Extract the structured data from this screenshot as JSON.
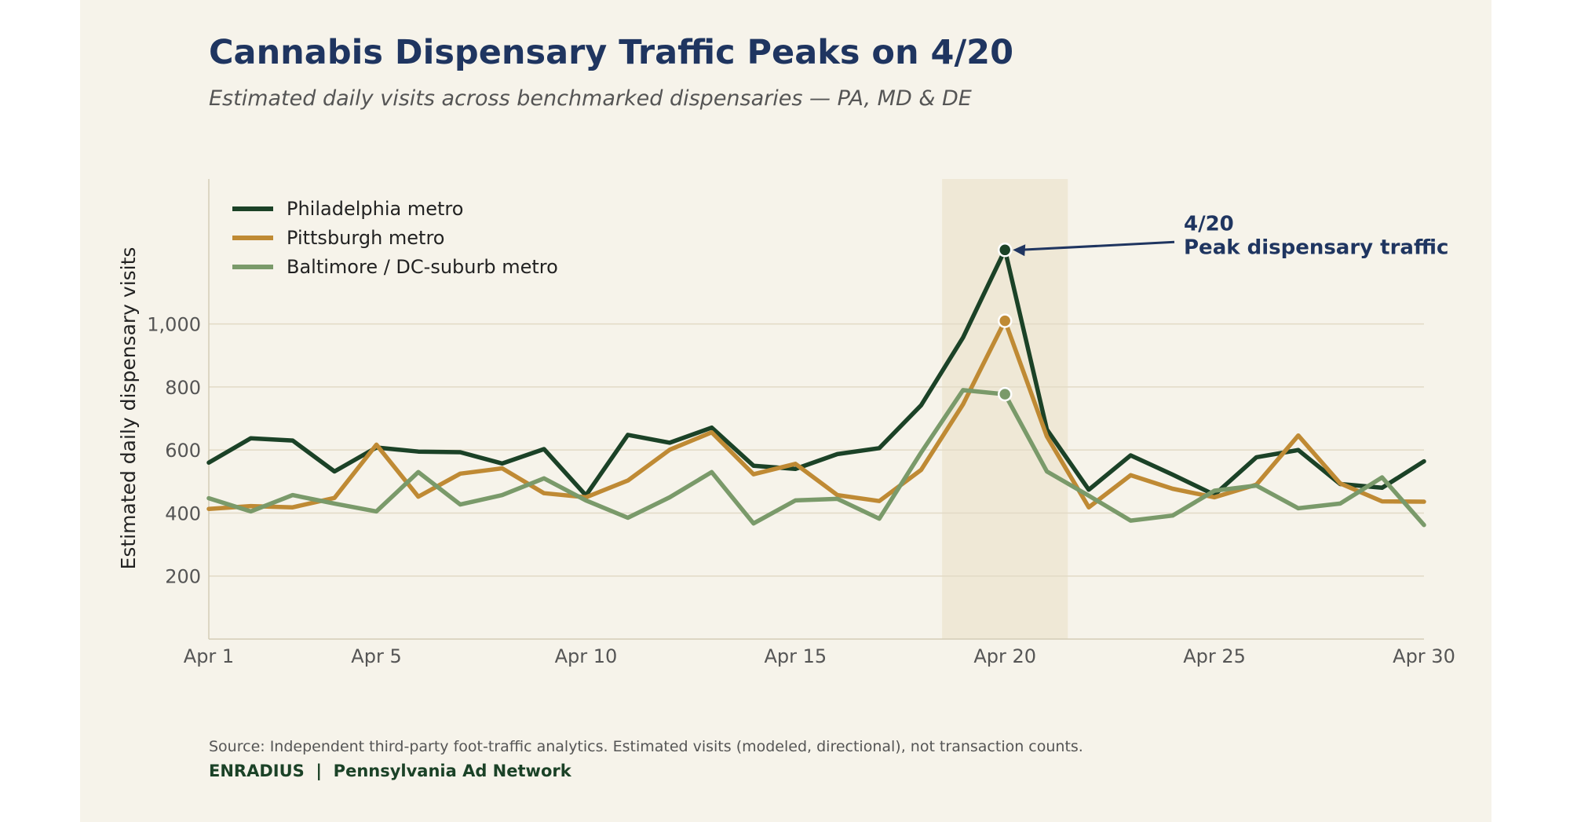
{
  "header": {
    "title": "Cannabis Dispensary Traffic Peaks on 4/20",
    "subtitle": "Estimated daily visits across benchmarked dispensaries — PA, MD & DE"
  },
  "footer": {
    "source": "Source: Independent third-party foot-traffic analytics. Estimated visits (modeled, directional), not transaction counts.",
    "brand": "ENRADIUS  |  Pennsylvania Ad Network"
  },
  "colors": {
    "panel_bg": "#f6f3ea",
    "title": "#1f3560",
    "philadelphia": "#1b4227",
    "pittsburgh": "#bf8a34",
    "baltimore": "#7a9a6a",
    "highlight_band": "#efe8d6",
    "grid": "#e2dac6",
    "annotation": "#1f3560"
  },
  "chart_data": {
    "type": "line",
    "title": "Cannabis Dispensary Traffic Peaks on 4/20",
    "subtitle": "Estimated daily visits across benchmarked dispensaries — PA, MD & DE",
    "ylabel": "Estimated daily dispensary visits",
    "xlabel": "",
    "x": [
      1,
      2,
      3,
      4,
      5,
      6,
      7,
      8,
      9,
      10,
      11,
      12,
      13,
      14,
      15,
      16,
      17,
      18,
      19,
      20,
      21,
      22,
      23,
      24,
      25,
      26,
      27,
      28,
      29,
      30
    ],
    "xlim": [
      1,
      30
    ],
    "ylim": [
      0,
      1460
    ],
    "x_ticks": [
      {
        "value": 1,
        "label": "Apr 1"
      },
      {
        "value": 5,
        "label": "Apr 5"
      },
      {
        "value": 10,
        "label": "Apr 10"
      },
      {
        "value": 15,
        "label": "Apr 15"
      },
      {
        "value": 20,
        "label": "Apr 20"
      },
      {
        "value": 25,
        "label": "Apr 25"
      },
      {
        "value": 30,
        "label": "Apr 30"
      }
    ],
    "y_ticks": [
      {
        "value": 200,
        "label": "200"
      },
      {
        "value": 400,
        "label": "400"
      },
      {
        "value": 600,
        "label": "600"
      },
      {
        "value": 800,
        "label": "800"
      },
      {
        "value": 1000,
        "label": "1,000"
      }
    ],
    "grid": true,
    "legend_position": "top-left",
    "highlight_range": [
      18.5,
      21.5
    ],
    "series": [
      {
        "name": "Philadelphia metro",
        "color": "#1b4227",
        "values": [
          560,
          637,
          630,
          532,
          608,
          595,
          593,
          557,
          603,
          456,
          648,
          623,
          671,
          550,
          540,
          587,
          606,
          742,
          957,
          1235,
          665,
          474,
          583,
          522,
          458,
          577,
          600,
          492,
          480,
          564
        ],
        "highlight_point": 20
      },
      {
        "name": "Pittsburgh metro",
        "color": "#bf8a34",
        "values": [
          413,
          422,
          418,
          448,
          617,
          452,
          525,
          542,
          463,
          450,
          503,
          601,
          656,
          523,
          556,
          457,
          438,
          537,
          745,
          1010,
          643,
          418,
          520,
          477,
          450,
          490,
          646,
          494,
          437,
          436
        ],
        "highlight_point": 20
      },
      {
        "name": "Baltimore / DC-suburb metro",
        "color": "#7a9a6a",
        "values": [
          447,
          405,
          457,
          430,
          405,
          530,
          427,
          457,
          510,
          440,
          385,
          450,
          530,
          367,
          440,
          445,
          382,
          592,
          790,
          777,
          532,
          455,
          376,
          392,
          471,
          487,
          415,
          430,
          513,
          362
        ],
        "highlight_point": 20
      }
    ],
    "annotation": {
      "x": 20,
      "y": 1235,
      "line1": "4/20",
      "line2": "Peak dispensary traffic"
    }
  }
}
